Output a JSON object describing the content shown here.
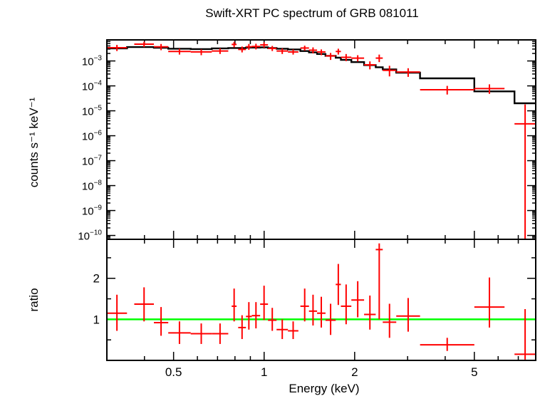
{
  "chart_data": [
    {
      "type": "line",
      "title": "Swift-XRT PC spectrum of GRB 081011",
      "ylabel": "counts s⁻¹ keV⁻¹",
      "xlabel": "",
      "xscale": "log",
      "yscale": "log",
      "xlim": [
        0.3,
        8.0
      ],
      "ylim": [
        7e-11,
        0.007
      ],
      "yticks": [
        {
          "value": 0.001,
          "base": "10",
          "exp": "−3"
        },
        {
          "value": 0.0001,
          "base": "10",
          "exp": "−4"
        },
        {
          "value": 1e-05,
          "base": "10",
          "exp": "−5"
        },
        {
          "value": 1e-06,
          "base": "10",
          "exp": "−6"
        },
        {
          "value": 1e-07,
          "base": "10",
          "exp": "−7"
        },
        {
          "value": 1e-08,
          "base": "10",
          "exp": "−8"
        },
        {
          "value": 1e-09,
          "base": "10",
          "exp": "−9"
        },
        {
          "value": 1e-10,
          "base": "10",
          "exp": "−10"
        }
      ],
      "series": [
        {
          "kind": "data",
          "color": "#ff0000",
          "points": [
            {
              "x0": 0.3,
              "x1": 0.35,
              "y": 0.0034,
              "ylo": 0.0025,
              "yhi": 0.0044
            },
            {
              "x0": 0.37,
              "x1": 0.43,
              "y": 0.0047,
              "ylo": 0.0036,
              "yhi": 0.0059
            },
            {
              "x0": 0.43,
              "x1": 0.48,
              "y": 0.0037,
              "ylo": 0.0027,
              "yhi": 0.0048
            },
            {
              "x0": 0.48,
              "x1": 0.57,
              "y": 0.0024,
              "ylo": 0.0018,
              "yhi": 0.0031
            },
            {
              "x0": 0.57,
              "x1": 0.67,
              "y": 0.0023,
              "ylo": 0.0017,
              "yhi": 0.0029
            },
            {
              "x0": 0.67,
              "x1": 0.76,
              "y": 0.0025,
              "ylo": 0.0019,
              "yhi": 0.0032
            },
            {
              "x0": 0.78,
              "x1": 0.81,
              "y": 0.0046,
              "ylo": 0.0035,
              "yhi": 0.0059
            },
            {
              "x0": 0.82,
              "x1": 0.87,
              "y": 0.0029,
              "ylo": 0.0022,
              "yhi": 0.0038
            },
            {
              "x0": 0.87,
              "x1": 0.91,
              "y": 0.0037,
              "ylo": 0.0028,
              "yhi": 0.0048
            },
            {
              "x0": 0.91,
              "x1": 0.97,
              "y": 0.0038,
              "ylo": 0.0029,
              "yhi": 0.0049
            },
            {
              "x0": 0.97,
              "x1": 1.03,
              "y": 0.0044,
              "ylo": 0.0034,
              "yhi": 0.0056
            },
            {
              "x0": 1.03,
              "x1": 1.1,
              "y": 0.0032,
              "ylo": 0.0025,
              "yhi": 0.004
            },
            {
              "x0": 1.1,
              "x1": 1.2,
              "y": 0.0025,
              "ylo": 0.0019,
              "yhi": 0.0032
            },
            {
              "x0": 1.2,
              "x1": 1.3,
              "y": 0.0023,
              "ylo": 0.0018,
              "yhi": 0.0029
            },
            {
              "x0": 1.32,
              "x1": 1.41,
              "y": 0.0033,
              "ylo": 0.0026,
              "yhi": 0.0041
            },
            {
              "x0": 1.41,
              "x1": 1.5,
              "y": 0.0027,
              "ylo": 0.002,
              "yhi": 0.0035
            },
            {
              "x0": 1.5,
              "x1": 1.6,
              "y": 0.0023,
              "ylo": 0.0017,
              "yhi": 0.0029
            },
            {
              "x0": 1.6,
              "x1": 1.73,
              "y": 0.0016,
              "ylo": 0.0011,
              "yhi": 0.0021
            },
            {
              "x0": 1.73,
              "x1": 1.8,
              "y": 0.0024,
              "ylo": 0.0018,
              "yhi": 0.0031
            },
            {
              "x0": 1.8,
              "x1": 1.95,
              "y": 0.0014,
              "ylo": 0.00098,
              "yhi": 0.0019
            },
            {
              "x0": 1.95,
              "x1": 2.15,
              "y": 0.0013,
              "ylo": 0.00095,
              "yhi": 0.0017
            },
            {
              "x0": 2.15,
              "x1": 2.35,
              "y": 0.0007,
              "ylo": 0.00046,
              "yhi": 0.00096
            },
            {
              "x0": 2.35,
              "x1": 2.48,
              "y": 0.0013,
              "ylo": 0.0009,
              "yhi": 0.0018
            },
            {
              "x0": 2.48,
              "x1": 2.75,
              "y": 0.00042,
              "ylo": 0.00024,
              "yhi": 0.00064
            },
            {
              "x0": 2.75,
              "x1": 3.3,
              "y": 0.00036,
              "ylo": 0.00023,
              "yhi": 0.00051
            },
            {
              "x0": 3.3,
              "x1": 5.0,
              "y": 7e-05,
              "ylo": 4.5e-05,
              "yhi": 0.0001
            },
            {
              "x0": 5.0,
              "x1": 6.3,
              "y": 7.8e-05,
              "ylo": 4.8e-05,
              "yhi": 0.000115
            },
            {
              "x0": 6.8,
              "x1": 8.0,
              "y": 3e-06,
              "ylo": 7e-11,
              "yhi": 1.8e-05
            }
          ]
        },
        {
          "kind": "model",
          "color": "#000000",
          "steps": [
            {
              "x0": 0.3,
              "x1": 0.35,
              "y": 0.0032
            },
            {
              "x0": 0.35,
              "x1": 0.43,
              "y": 0.0036
            },
            {
              "x0": 0.43,
              "x1": 0.48,
              "y": 0.0034
            },
            {
              "x0": 0.48,
              "x1": 0.57,
              "y": 0.0031
            },
            {
              "x0": 0.57,
              "x1": 0.67,
              "y": 0.003
            },
            {
              "x0": 0.67,
              "x1": 0.76,
              "y": 0.0032
            },
            {
              "x0": 0.76,
              "x1": 0.87,
              "y": 0.0033
            },
            {
              "x0": 0.87,
              "x1": 0.97,
              "y": 0.00345
            },
            {
              "x0": 0.97,
              "x1": 1.03,
              "y": 0.0035
            },
            {
              "x0": 1.03,
              "x1": 1.1,
              "y": 0.0033
            },
            {
              "x0": 1.1,
              "x1": 1.2,
              "y": 0.0031
            },
            {
              "x0": 1.2,
              "x1": 1.32,
              "y": 0.0029
            },
            {
              "x0": 1.32,
              "x1": 1.41,
              "y": 0.0025
            },
            {
              "x0": 1.41,
              "x1": 1.5,
              "y": 0.0022
            },
            {
              "x0": 1.5,
              "x1": 1.6,
              "y": 0.0019
            },
            {
              "x0": 1.6,
              "x1": 1.73,
              "y": 0.0016
            },
            {
              "x0": 1.73,
              "x1": 1.8,
              "y": 0.00135
            },
            {
              "x0": 1.8,
              "x1": 1.95,
              "y": 0.0011
            },
            {
              "x0": 1.95,
              "x1": 2.15,
              "y": 0.0009
            },
            {
              "x0": 2.15,
              "x1": 2.35,
              "y": 0.00068
            },
            {
              "x0": 2.35,
              "x1": 2.48,
              "y": 0.00056
            },
            {
              "x0": 2.48,
              "x1": 2.75,
              "y": 0.00046
            },
            {
              "x0": 2.75,
              "x1": 3.3,
              "y": 0.00034
            },
            {
              "x0": 3.3,
              "x1": 5.0,
              "y": 0.0002
            },
            {
              "x0": 5.0,
              "x1": 6.8,
              "y": 6e-05
            },
            {
              "x0": 6.8,
              "x1": 8.0,
              "y": 2e-05
            }
          ]
        }
      ]
    },
    {
      "type": "scatter",
      "title": "",
      "ylabel": "ratio",
      "xlabel": "Energy (keV)",
      "xscale": "log",
      "xlim": [
        0.3,
        8.0
      ],
      "ylim": [
        0.0,
        2.95
      ],
      "yticks": [
        1,
        2
      ],
      "xticks": [
        0.5,
        1,
        2,
        5
      ],
      "xtick_labels": [
        "0.5",
        "1",
        "2",
        "5"
      ],
      "reference_line": {
        "y": 1,
        "color": "#00ff00"
      },
      "series": [
        {
          "kind": "ratio",
          "color": "#ff0000",
          "points": [
            {
              "x0": 0.3,
              "x1": 0.35,
              "y": 1.15,
              "ylo": 0.72,
              "yhi": 1.6
            },
            {
              "x0": 0.37,
              "x1": 0.43,
              "y": 1.37,
              "ylo": 0.95,
              "yhi": 1.78
            },
            {
              "x0": 0.43,
              "x1": 0.48,
              "y": 0.92,
              "ylo": 0.6,
              "yhi": 1.3
            },
            {
              "x0": 0.48,
              "x1": 0.57,
              "y": 0.67,
              "ylo": 0.4,
              "yhi": 0.95
            },
            {
              "x0": 0.57,
              "x1": 0.67,
              "y": 0.65,
              "ylo": 0.4,
              "yhi": 0.9
            },
            {
              "x0": 0.67,
              "x1": 0.76,
              "y": 0.65,
              "ylo": 0.4,
              "yhi": 0.9
            },
            {
              "x0": 0.78,
              "x1": 0.81,
              "y": 1.32,
              "ylo": 0.95,
              "yhi": 1.75
            },
            {
              "x0": 0.82,
              "x1": 0.87,
              "y": 0.8,
              "ylo": 0.52,
              "yhi": 1.1
            },
            {
              "x0": 0.87,
              "x1": 0.91,
              "y": 1.07,
              "ylo": 0.75,
              "yhi": 1.42
            },
            {
              "x0": 0.91,
              "x1": 0.97,
              "y": 1.09,
              "ylo": 0.78,
              "yhi": 1.42
            },
            {
              "x0": 0.97,
              "x1": 1.03,
              "y": 1.37,
              "ylo": 0.98,
              "yhi": 1.82
            },
            {
              "x0": 1.03,
              "x1": 1.1,
              "y": 0.98,
              "ylo": 0.72,
              "yhi": 1.28
            },
            {
              "x0": 1.1,
              "x1": 1.2,
              "y": 0.75,
              "ylo": 0.52,
              "yhi": 1.0
            },
            {
              "x0": 1.2,
              "x1": 1.3,
              "y": 0.72,
              "ylo": 0.52,
              "yhi": 0.95
            },
            {
              "x0": 1.32,
              "x1": 1.41,
              "y": 1.32,
              "ylo": 0.95,
              "yhi": 1.75
            },
            {
              "x0": 1.41,
              "x1": 1.5,
              "y": 1.2,
              "ylo": 0.85,
              "yhi": 1.6
            },
            {
              "x0": 1.5,
              "x1": 1.6,
              "y": 1.15,
              "ylo": 0.8,
              "yhi": 1.55
            },
            {
              "x0": 1.6,
              "x1": 1.73,
              "y": 0.98,
              "ylo": 0.62,
              "yhi": 1.38
            },
            {
              "x0": 1.73,
              "x1": 1.8,
              "y": 1.85,
              "ylo": 1.35,
              "yhi": 2.35
            },
            {
              "x0": 1.8,
              "x1": 1.95,
              "y": 1.32,
              "ylo": 0.88,
              "yhi": 1.85
            },
            {
              "x0": 1.95,
              "x1": 2.15,
              "y": 1.47,
              "ylo": 1.05,
              "yhi": 1.93
            },
            {
              "x0": 2.15,
              "x1": 2.35,
              "y": 1.12,
              "ylo": 0.75,
              "yhi": 1.58
            },
            {
              "x0": 2.35,
              "x1": 2.48,
              "y": 2.7,
              "ylo": 1.0,
              "yhi": 2.85
            },
            {
              "x0": 2.48,
              "x1": 2.75,
              "y": 0.93,
              "ylo": 0.55,
              "yhi": 1.38
            },
            {
              "x0": 2.75,
              "x1": 3.3,
              "y": 1.08,
              "ylo": 0.7,
              "yhi": 1.52
            },
            {
              "x0": 3.3,
              "x1": 5.0,
              "y": 0.38,
              "ylo": 0.23,
              "yhi": 0.55
            },
            {
              "x0": 5.0,
              "x1": 6.3,
              "y": 1.3,
              "ylo": 0.8,
              "yhi": 2.02
            },
            {
              "x0": 6.8,
              "x1": 8.0,
              "y": 0.15,
              "ylo": 0.02,
              "yhi": 1.25
            }
          ]
        }
      ]
    }
  ]
}
